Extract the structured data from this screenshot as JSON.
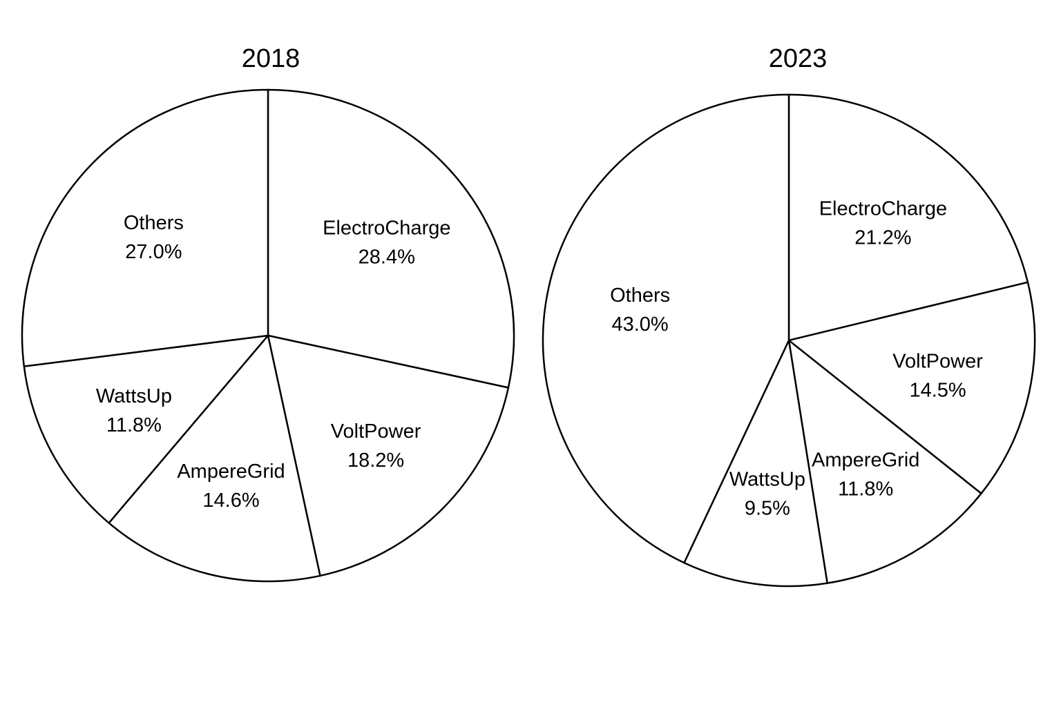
{
  "chart_data": [
    {
      "type": "pie",
      "title": "2018",
      "slices": [
        {
          "label": "ElectroCharge",
          "value": 28.4,
          "value_label": "28.4%"
        },
        {
          "label": "VoltPower",
          "value": 18.2,
          "value_label": "18.2%"
        },
        {
          "label": "AmpereGrid",
          "value": 14.6,
          "value_label": "14.6%"
        },
        {
          "label": "WattsUp",
          "value": 11.8,
          "value_label": "11.8%"
        },
        {
          "label": "Others",
          "value": 27.0,
          "value_label": "27.0%"
        }
      ],
      "start_angle": "12 o'clock",
      "direction": "clockwise",
      "fill_color": "#ffffff",
      "edge_color": "#000000",
      "legend": "none"
    },
    {
      "type": "pie",
      "title": "2023",
      "slices": [
        {
          "label": "ElectroCharge",
          "value": 21.2,
          "value_label": "21.2%"
        },
        {
          "label": "VoltPower",
          "value": 14.5,
          "value_label": "14.5%"
        },
        {
          "label": "AmpereGrid",
          "value": 11.8,
          "value_label": "11.8%"
        },
        {
          "label": "WattsUp",
          "value": 9.5,
          "value_label": "9.5%"
        },
        {
          "label": "Others",
          "value": 43.0,
          "value_label": "43.0%"
        }
      ],
      "start_angle": "12 o'clock",
      "direction": "clockwise",
      "fill_color": "#ffffff",
      "edge_color": "#000000",
      "legend": "none"
    }
  ]
}
